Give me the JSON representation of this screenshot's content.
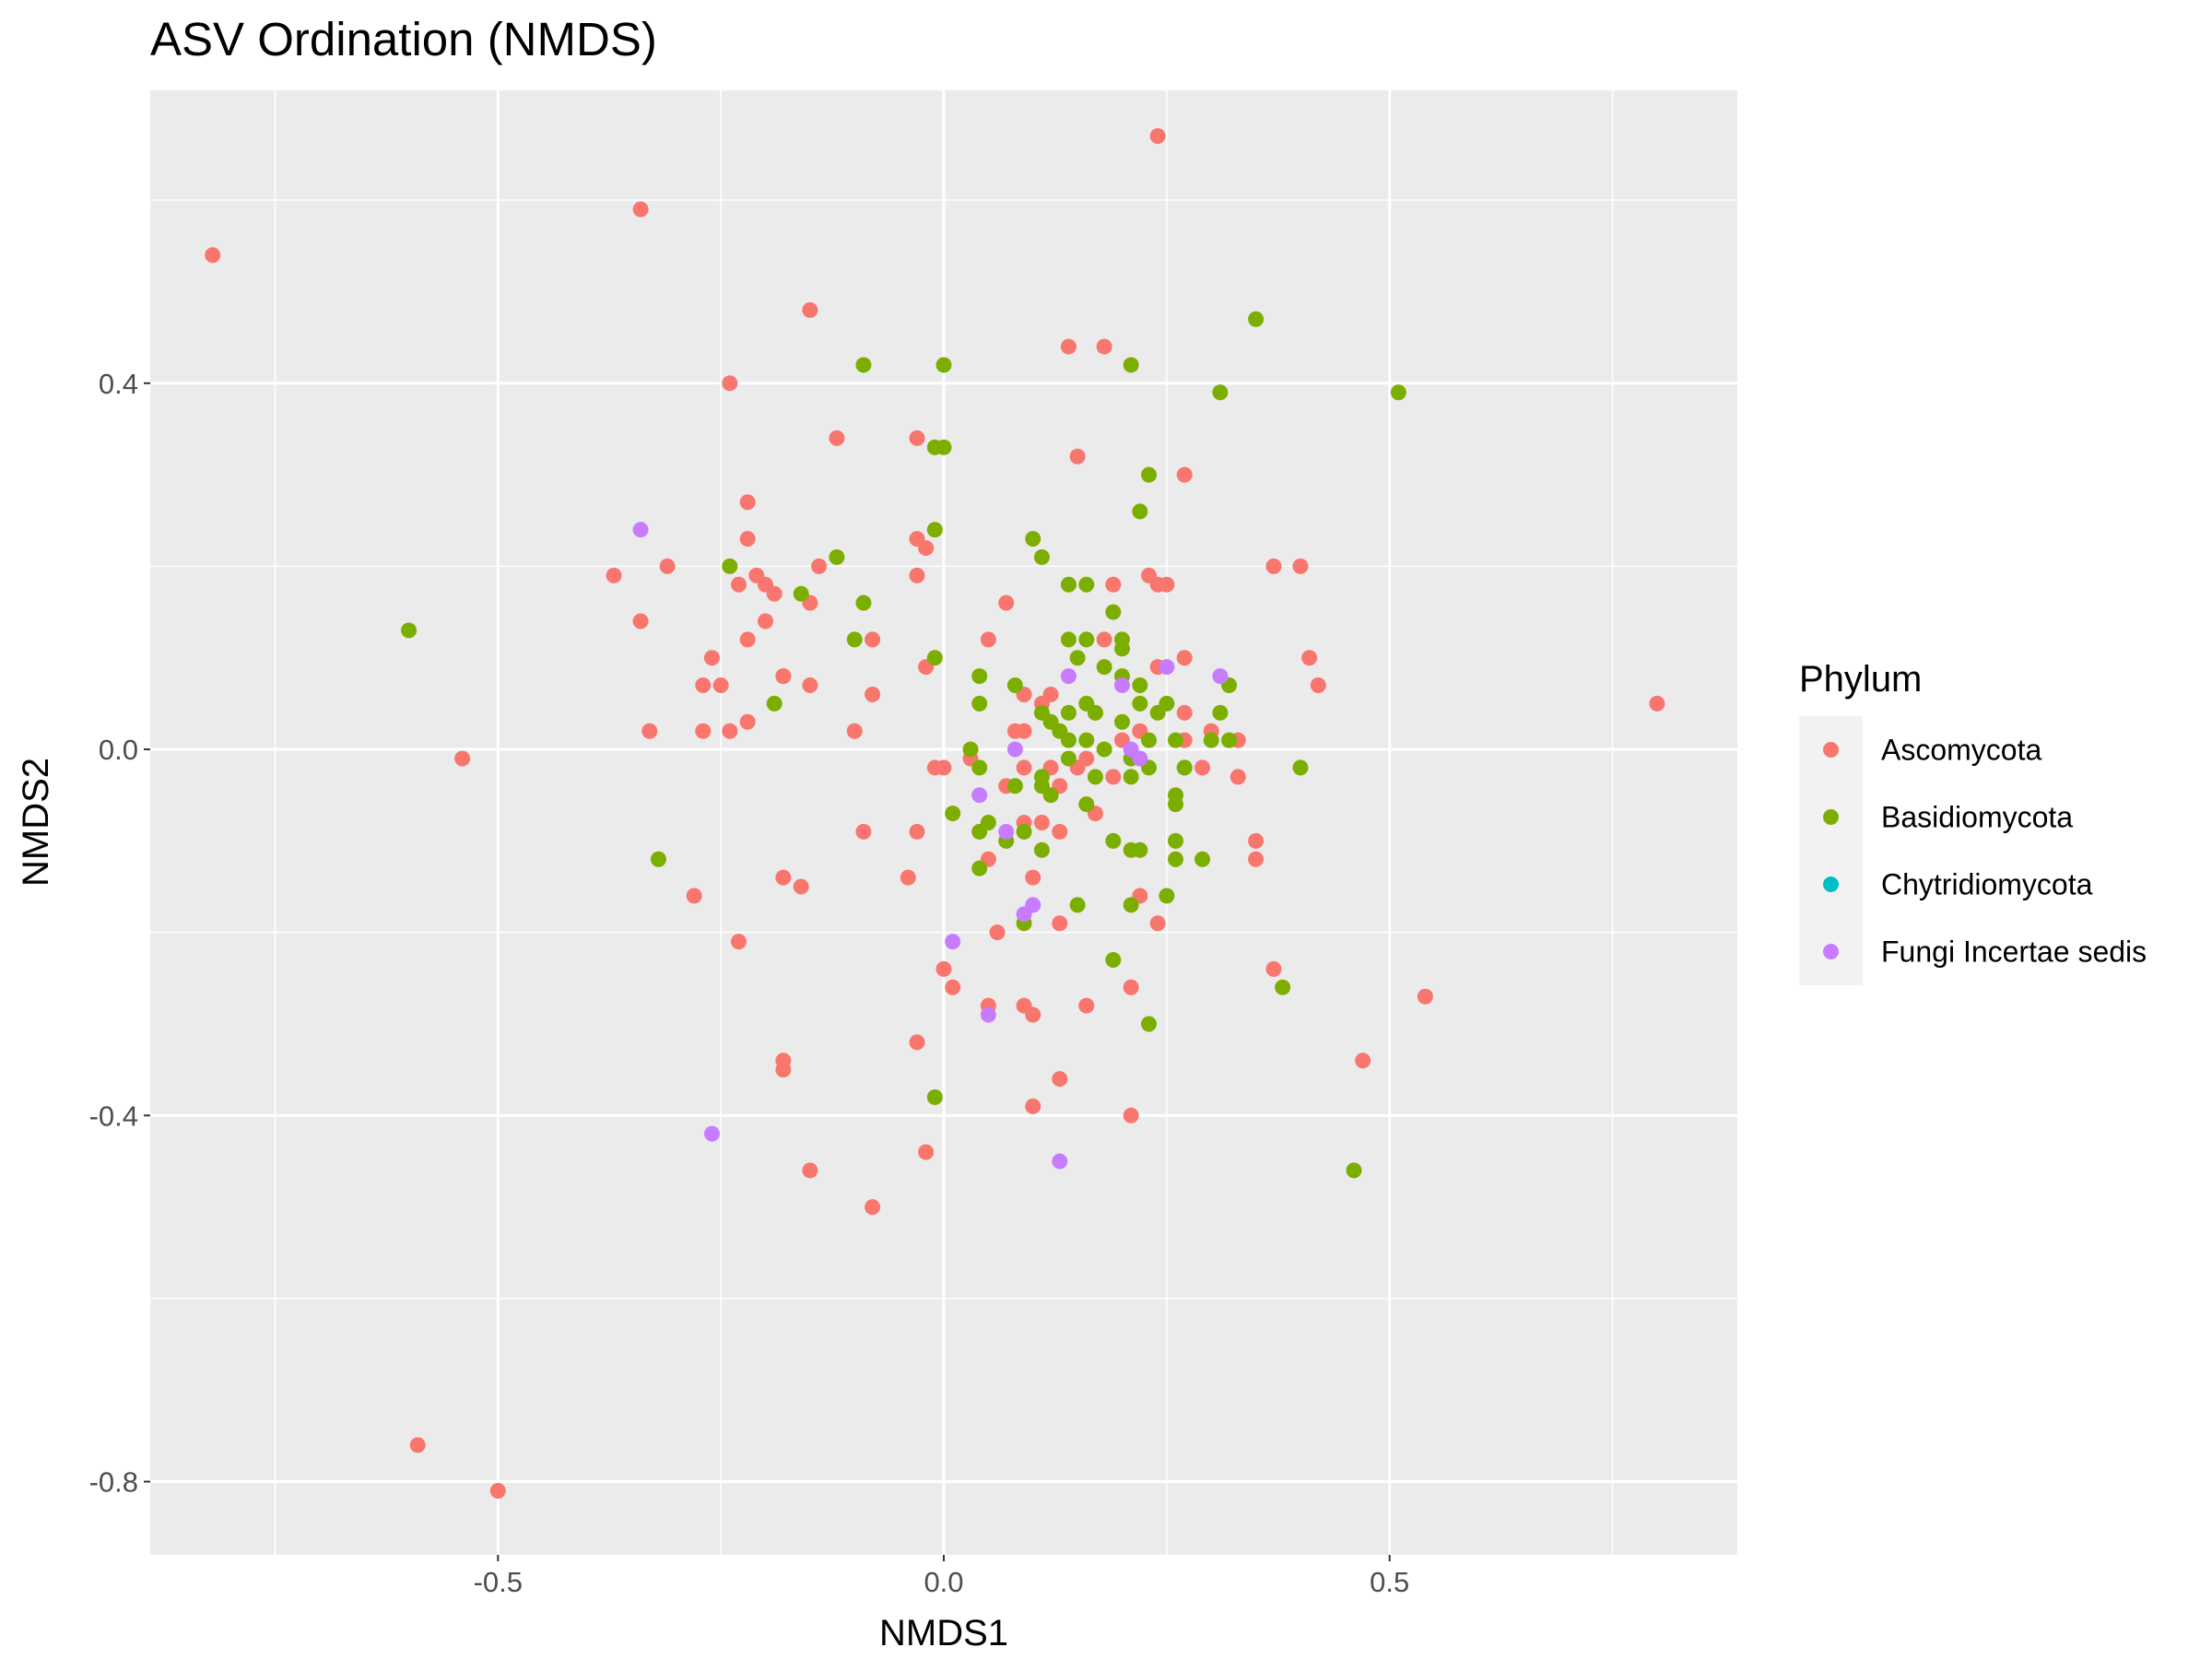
{
  "chart_data": {
    "type": "scatter",
    "title": "ASV Ordination (NMDS)",
    "xlabel": "NMDS1",
    "ylabel": "NMDS2",
    "xlim": [
      -0.89,
      0.89
    ],
    "ylim": [
      -0.88,
      0.72
    ],
    "x_ticks": [
      -0.5,
      0.0,
      0.5
    ],
    "x_tick_labels": [
      "-0.5",
      "0.0",
      "0.5"
    ],
    "y_ticks": [
      -0.8,
      -0.4,
      0.0,
      0.4
    ],
    "y_tick_labels": [
      "-0.8",
      "-0.4",
      "0.0",
      "0.4"
    ],
    "grid": true,
    "legend": {
      "title": "Phylum",
      "position": "right",
      "entries": [
        {
          "name": "Ascomycota",
          "color": "#F8766D"
        },
        {
          "name": "Basidiomycota",
          "color": "#7CAE00"
        },
        {
          "name": "Chytridiomycota",
          "color": "#00BFC4"
        },
        {
          "name": "Fungi Incertae sedis",
          "color": "#C77CFF"
        }
      ]
    },
    "series": [
      {
        "name": "Ascomycota",
        "color": "#F8766D",
        "points": [
          [
            -0.82,
            0.54
          ],
          [
            -0.34,
            0.59
          ],
          [
            0.24,
            0.67
          ],
          [
            -0.15,
            0.48
          ],
          [
            0.14,
            0.44
          ],
          [
            0.18,
            0.44
          ],
          [
            -0.24,
            0.4
          ],
          [
            -0.12,
            0.34
          ],
          [
            -0.03,
            0.34
          ],
          [
            0.15,
            0.32
          ],
          [
            0.27,
            0.3
          ],
          [
            -0.22,
            0.27
          ],
          [
            -0.03,
            0.23
          ],
          [
            -0.02,
            0.22
          ],
          [
            -0.22,
            0.23
          ],
          [
            -0.31,
            0.2
          ],
          [
            -0.37,
            0.19
          ],
          [
            -0.21,
            0.19
          ],
          [
            -0.23,
            0.18
          ],
          [
            -0.2,
            0.18
          ],
          [
            -0.19,
            0.17
          ],
          [
            -0.14,
            0.2
          ],
          [
            -0.15,
            0.16
          ],
          [
            -0.03,
            0.19
          ],
          [
            0.23,
            0.19
          ],
          [
            0.24,
            0.18
          ],
          [
            0.25,
            0.18
          ],
          [
            0.19,
            0.18
          ],
          [
            0.37,
            0.2
          ],
          [
            0.4,
            0.2
          ],
          [
            0.07,
            0.16
          ],
          [
            -0.34,
            0.14
          ],
          [
            -0.2,
            0.14
          ],
          [
            -0.22,
            0.12
          ],
          [
            -0.08,
            0.12
          ],
          [
            0.05,
            0.12
          ],
          [
            0.18,
            0.12
          ],
          [
            0.41,
            0.1
          ],
          [
            -0.26,
            0.1
          ],
          [
            -0.02,
            0.09
          ],
          [
            0.24,
            0.09
          ],
          [
            0.27,
            0.1
          ],
          [
            -0.27,
            0.07
          ],
          [
            -0.25,
            0.07
          ],
          [
            -0.18,
            0.08
          ],
          [
            -0.18,
            0.08
          ],
          [
            -0.15,
            0.07
          ],
          [
            -0.08,
            0.06
          ],
          [
            0.12,
            0.06
          ],
          [
            0.09,
            0.06
          ],
          [
            0.11,
            0.05
          ],
          [
            0.42,
            0.07
          ],
          [
            0.8,
            0.05
          ],
          [
            -0.22,
            0.03
          ],
          [
            0.17,
            0.04
          ],
          [
            0.27,
            0.04
          ],
          [
            -0.33,
            0.02
          ],
          [
            -0.27,
            0.02
          ],
          [
            -0.24,
            0.02
          ],
          [
            -0.1,
            0.02
          ],
          [
            0.08,
            0.02
          ],
          [
            0.09,
            0.02
          ],
          [
            0.2,
            0.01
          ],
          [
            0.22,
            0.02
          ],
          [
            0.27,
            0.01
          ],
          [
            0.3,
            0.02
          ],
          [
            0.33,
            0.01
          ],
          [
            -0.54,
            -0.01
          ],
          [
            -0.01,
            -0.02
          ],
          [
            0.0,
            -0.02
          ],
          [
            0.03,
            -0.01
          ],
          [
            0.07,
            -0.04
          ],
          [
            0.09,
            -0.02
          ],
          [
            0.12,
            -0.02
          ],
          [
            0.13,
            -0.04
          ],
          [
            0.15,
            -0.02
          ],
          [
            0.16,
            -0.01
          ],
          [
            0.19,
            -0.03
          ],
          [
            0.27,
            -0.02
          ],
          [
            0.29,
            -0.02
          ],
          [
            0.33,
            -0.03
          ],
          [
            -0.09,
            -0.09
          ],
          [
            -0.03,
            -0.09
          ],
          [
            0.09,
            -0.08
          ],
          [
            0.11,
            -0.08
          ],
          [
            0.13,
            -0.09
          ],
          [
            0.17,
            -0.07
          ],
          [
            0.35,
            -0.1
          ],
          [
            0.35,
            -0.12
          ],
          [
            0.05,
            -0.12
          ],
          [
            -0.28,
            -0.16
          ],
          [
            -0.18,
            -0.14
          ],
          [
            -0.16,
            -0.15
          ],
          [
            -0.04,
            -0.14
          ],
          [
            0.1,
            -0.14
          ],
          [
            0.22,
            -0.16
          ],
          [
            0.24,
            -0.19
          ],
          [
            0.06,
            -0.2
          ],
          [
            0.13,
            -0.19
          ],
          [
            -0.23,
            -0.21
          ],
          [
            0.0,
            -0.24
          ],
          [
            0.01,
            -0.26
          ],
          [
            0.37,
            -0.24
          ],
          [
            0.21,
            -0.26
          ],
          [
            0.05,
            -0.28
          ],
          [
            0.09,
            -0.28
          ],
          [
            0.1,
            -0.29
          ],
          [
            0.16,
            -0.28
          ],
          [
            0.54,
            -0.27
          ],
          [
            -0.03,
            -0.32
          ],
          [
            -0.18,
            -0.34
          ],
          [
            -0.18,
            -0.35
          ],
          [
            0.47,
            -0.34
          ],
          [
            0.13,
            -0.36
          ],
          [
            0.1,
            -0.39
          ],
          [
            0.21,
            -0.4
          ],
          [
            -0.02,
            -0.44
          ],
          [
            -0.15,
            -0.46
          ],
          [
            -0.08,
            -0.5
          ],
          [
            -0.59,
            -0.76
          ],
          [
            -0.5,
            -0.81
          ]
        ]
      },
      {
        "name": "Basidiomycota",
        "color": "#7CAE00",
        "points": [
          [
            0.35,
            0.47
          ],
          [
            -0.09,
            0.42
          ],
          [
            0.0,
            0.42
          ],
          [
            0.21,
            0.42
          ],
          [
            0.51,
            0.39
          ],
          [
            0.31,
            0.39
          ],
          [
            -0.01,
            0.33
          ],
          [
            0.0,
            0.33
          ],
          [
            0.23,
            0.3
          ],
          [
            0.22,
            0.26
          ],
          [
            -0.01,
            0.24
          ],
          [
            0.1,
            0.23
          ],
          [
            0.11,
            0.21
          ],
          [
            -0.24,
            0.2
          ],
          [
            -0.12,
            0.21
          ],
          [
            0.16,
            0.18
          ],
          [
            0.14,
            0.18
          ],
          [
            -0.16,
            0.17
          ],
          [
            -0.09,
            0.16
          ],
          [
            0.19,
            0.15
          ],
          [
            -0.6,
            0.13
          ],
          [
            -0.1,
            0.12
          ],
          [
            0.14,
            0.12
          ],
          [
            0.16,
            0.12
          ],
          [
            0.2,
            0.12
          ],
          [
            0.2,
            0.11
          ],
          [
            0.15,
            0.1
          ],
          [
            -0.01,
            0.1
          ],
          [
            0.18,
            0.09
          ],
          [
            0.2,
            0.08
          ],
          [
            0.22,
            0.07
          ],
          [
            0.32,
            0.07
          ],
          [
            0.04,
            0.08
          ],
          [
            0.08,
            0.07
          ],
          [
            0.16,
            0.05
          ],
          [
            0.04,
            0.05
          ],
          [
            0.25,
            0.05
          ],
          [
            0.22,
            0.05
          ],
          [
            -0.19,
            0.05
          ],
          [
            0.11,
            0.04
          ],
          [
            0.14,
            0.04
          ],
          [
            0.17,
            0.04
          ],
          [
            0.2,
            0.03
          ],
          [
            0.24,
            0.04
          ],
          [
            0.31,
            0.04
          ],
          [
            0.12,
            0.03
          ],
          [
            0.13,
            0.02
          ],
          [
            0.14,
            0.01
          ],
          [
            0.16,
            0.01
          ],
          [
            0.23,
            0.01
          ],
          [
            0.26,
            0.01
          ],
          [
            0.3,
            0.01
          ],
          [
            0.32,
            0.01
          ],
          [
            0.03,
            0.0
          ],
          [
            0.18,
            0.0
          ],
          [
            0.21,
            -0.01
          ],
          [
            0.14,
            -0.01
          ],
          [
            0.04,
            -0.02
          ],
          [
            0.11,
            -0.03
          ],
          [
            0.23,
            -0.02
          ],
          [
            0.27,
            -0.02
          ],
          [
            0.4,
            -0.02
          ],
          [
            0.17,
            -0.03
          ],
          [
            0.21,
            -0.03
          ],
          [
            0.08,
            -0.04
          ],
          [
            0.11,
            -0.04
          ],
          [
            0.12,
            -0.05
          ],
          [
            0.16,
            -0.06
          ],
          [
            0.26,
            -0.05
          ],
          [
            0.26,
            -0.06
          ],
          [
            0.01,
            -0.07
          ],
          [
            0.04,
            -0.09
          ],
          [
            0.05,
            -0.08
          ],
          [
            0.07,
            -0.1
          ],
          [
            0.09,
            -0.09
          ],
          [
            0.19,
            -0.1
          ],
          [
            0.21,
            -0.11
          ],
          [
            0.22,
            -0.11
          ],
          [
            0.26,
            -0.1
          ],
          [
            0.26,
            -0.12
          ],
          [
            0.29,
            -0.12
          ],
          [
            0.11,
            -0.11
          ],
          [
            -0.32,
            -0.12
          ],
          [
            0.04,
            -0.13
          ],
          [
            0.15,
            -0.17
          ],
          [
            0.21,
            -0.17
          ],
          [
            0.25,
            -0.16
          ],
          [
            0.09,
            -0.19
          ],
          [
            0.19,
            -0.23
          ],
          [
            0.38,
            -0.26
          ],
          [
            0.23,
            -0.3
          ],
          [
            -0.01,
            -0.38
          ],
          [
            0.46,
            -0.46
          ]
        ]
      },
      {
        "name": "Fungi Incertae sedis",
        "color": "#C77CFF",
        "points": [
          [
            -0.34,
            0.24
          ],
          [
            0.31,
            0.08
          ],
          [
            0.25,
            0.09
          ],
          [
            0.14,
            0.08
          ],
          [
            0.2,
            0.07
          ],
          [
            0.21,
            0.0
          ],
          [
            0.22,
            -0.01
          ],
          [
            0.08,
            0.0
          ],
          [
            0.04,
            -0.05
          ],
          [
            0.07,
            -0.09
          ],
          [
            0.1,
            -0.17
          ],
          [
            0.09,
            -0.18
          ],
          [
            0.01,
            -0.21
          ],
          [
            0.05,
            -0.29
          ],
          [
            -0.26,
            -0.42
          ],
          [
            0.13,
            -0.45
          ]
        ]
      }
    ]
  }
}
